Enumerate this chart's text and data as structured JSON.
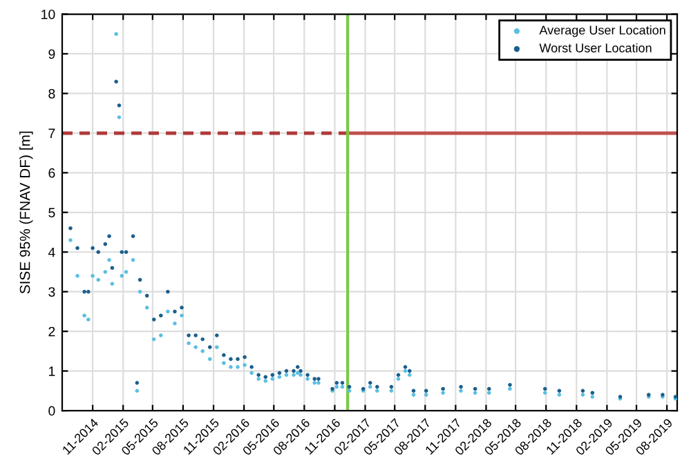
{
  "chart_data": {
    "type": "scatter",
    "ylabel": "SISE 95% (FNAV DF) [m]",
    "x": [
      "2014-08-26",
      "2014-09-16",
      "2014-10-07",
      "2014-10-19",
      "2014-11-01",
      "2014-11-18",
      "2014-12-09",
      "2014-12-21",
      "2014-12-30",
      "2015-01-11",
      "2015-01-20",
      "2015-01-28",
      "2015-02-10",
      "2015-03-03",
      "2015-03-15",
      "2015-03-24",
      "2015-04-14",
      "2015-05-05",
      "2015-05-26",
      "2015-06-16",
      "2015-07-07",
      "2015-07-28",
      "2015-08-18",
      "2015-09-08",
      "2015-09-29",
      "2015-10-21",
      "2015-11-11",
      "2015-12-02",
      "2015-12-23",
      "2016-01-13",
      "2016-02-03",
      "2016-02-24",
      "2016-03-16",
      "2016-04-06",
      "2016-04-27",
      "2016-05-18",
      "2016-06-08",
      "2016-06-30",
      "2016-07-12",
      "2016-07-21",
      "2016-08-11",
      "2016-09-01",
      "2016-09-13",
      "2016-10-25",
      "2016-11-07",
      "2016-11-24",
      "2016-12-15",
      "2017-01-26",
      "2017-02-16",
      "2017-03-09",
      "2017-04-21",
      "2017-05-12",
      "2017-06-02",
      "2017-06-15",
      "2017-06-27",
      "2017-08-04",
      "2017-09-24",
      "2017-11-17",
      "2017-12-30",
      "2018-02-10",
      "2018-04-14",
      "2018-07-29",
      "2018-09-10",
      "2018-11-20",
      "2018-12-19",
      "2019-03-13",
      "2019-06-07",
      "2019-07-19",
      "2019-08-27"
    ],
    "series": [
      {
        "name": "Average User Location",
        "color": "#5bbfe0",
        "marker": "circle",
        "values": [
          4.3,
          3.4,
          2.4,
          2.3,
          3.4,
          3.3,
          3.5,
          3.8,
          3.2,
          9.5,
          7.4,
          3.4,
          3.5,
          3.8,
          0.5,
          3.0,
          2.6,
          1.8,
          1.9,
          2.5,
          2.2,
          2.4,
          1.7,
          1.6,
          1.5,
          1.3,
          1.6,
          1.2,
          1.1,
          1.1,
          1.15,
          0.95,
          0.8,
          0.75,
          0.8,
          0.85,
          0.9,
          0.9,
          0.95,
          0.9,
          0.8,
          0.7,
          0.7,
          0.5,
          0.6,
          0.6,
          0.5,
          0.5,
          0.6,
          0.5,
          0.5,
          0.8,
          1.0,
          0.9,
          0.4,
          0.4,
          0.45,
          0.5,
          0.45,
          0.45,
          0.55,
          0.45,
          0.4,
          0.4,
          0.35,
          0.3,
          0.35,
          0.35,
          0.3
        ]
      },
      {
        "name": "Worst User Location",
        "color": "#1b5f8c",
        "marker": "circle",
        "values": [
          4.6,
          4.1,
          3.0,
          3.0,
          4.1,
          4.0,
          4.2,
          4.4,
          3.6,
          8.3,
          7.7,
          4.0,
          4.0,
          4.4,
          0.7,
          3.3,
          2.9,
          2.3,
          2.4,
          3.0,
          2.5,
          2.6,
          1.9,
          1.9,
          1.8,
          1.6,
          1.9,
          1.4,
          1.3,
          1.3,
          1.35,
          1.1,
          0.9,
          0.85,
          0.9,
          0.95,
          1.0,
          1.0,
          1.1,
          1.0,
          0.9,
          0.8,
          0.8,
          0.55,
          0.7,
          0.7,
          0.6,
          0.55,
          0.7,
          0.6,
          0.6,
          0.9,
          1.1,
          1.0,
          0.5,
          0.5,
          0.55,
          0.6,
          0.55,
          0.55,
          0.65,
          0.55,
          0.5,
          0.5,
          0.45,
          0.35,
          0.4,
          0.4,
          0.35
        ]
      },
      {
        "type": "line",
        "color": "#b03a3a",
        "line_style": "dashed",
        "marker": "none",
        "x": [
          "2014-08",
          "2016-12-10"
        ],
        "values": [
          7,
          7
        ]
      },
      {
        "type": "line",
        "color": "#c0504d",
        "line_style": "solid",
        "marker": "none",
        "x": [
          "2016-12-10",
          "2019-09"
        ],
        "values": [
          7,
          7
        ]
      }
    ],
    "ref_lines": [
      {
        "axis": "x",
        "value": "2016-12-10",
        "color": "#7ac943"
      }
    ],
    "xlim": [
      "2014-08",
      "2019-09"
    ],
    "xticks": [
      {
        "value": "2014-11",
        "label": "11-2014"
      },
      {
        "value": "2015-02",
        "label": "02-2015"
      },
      {
        "value": "2015-05",
        "label": "05-2015"
      },
      {
        "value": "2015-08",
        "label": "08-2015"
      },
      {
        "value": "2015-11",
        "label": "11-2015"
      },
      {
        "value": "2016-02",
        "label": "02-2016"
      },
      {
        "value": "2016-05",
        "label": "05-2016"
      },
      {
        "value": "2016-08",
        "label": "08-2016"
      },
      {
        "value": "2016-11",
        "label": "11-2016"
      },
      {
        "value": "2017-02",
        "label": "02-2017"
      },
      {
        "value": "2017-05",
        "label": "05-2017"
      },
      {
        "value": "2017-08",
        "label": "08-2017"
      },
      {
        "value": "2017-11",
        "label": "11-2017"
      },
      {
        "value": "2018-02",
        "label": "02-2018"
      },
      {
        "value": "2018-05",
        "label": "05-2018"
      },
      {
        "value": "2018-08",
        "label": "08-2018"
      },
      {
        "value": "2018-11",
        "label": "11-2018"
      },
      {
        "value": "2019-02",
        "label": "02-2019"
      },
      {
        "value": "2019-05",
        "label": "05-2019"
      },
      {
        "value": "2019-08",
        "label": "08-2019"
      }
    ],
    "ylim": [
      0,
      10
    ],
    "yticks": [
      0,
      1,
      2,
      3,
      4,
      5,
      6,
      7,
      8,
      9,
      10
    ],
    "grid": true,
    "legend": "top right"
  }
}
